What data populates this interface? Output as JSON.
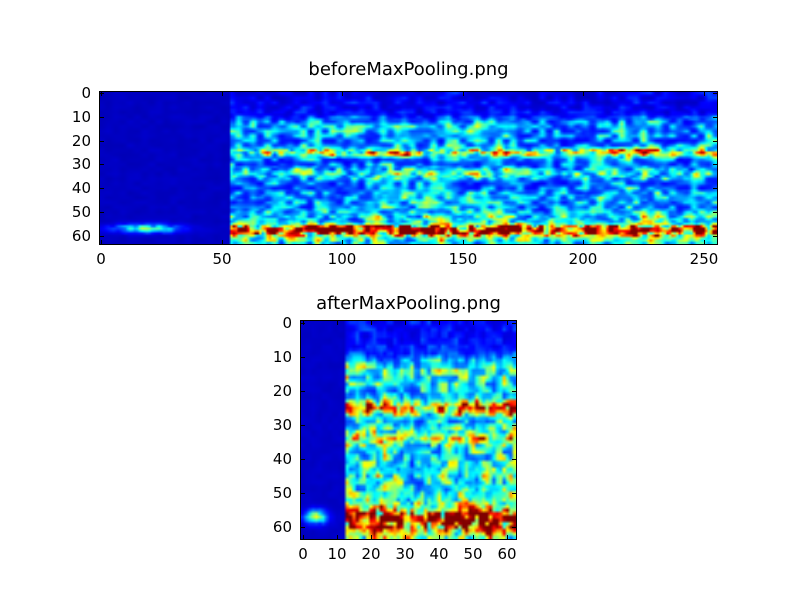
{
  "figure": {
    "background": "#ffffff",
    "frame_color": "#000000",
    "text_color": "#000000"
  },
  "chart_data": [
    {
      "type": "heatmap",
      "title": "beforeMaxPooling.png",
      "xlabel": "",
      "ylabel": "",
      "colormap": "jet",
      "x_ticks": [
        0,
        50,
        100,
        150,
        200,
        250
      ],
      "y_ticks": [
        0,
        10,
        20,
        30,
        40,
        50,
        60
      ],
      "x_range": [
        -0.5,
        255.5
      ],
      "y_range": [
        -0.5,
        63.5
      ],
      "y_axis_inverted": true,
      "grid": false,
      "legend": false,
      "description": "Spectrogram, 64 frequency rows x 256 time frames. Frames 0-54 are near-silent dark navy except a faint blue streak at row ~57 spanning frames ~6-32. Active frames 55-255 show noisy blue background (rows 0-8 quieter), bright blue horizontal bands near rows 25 and 33, faint bands near rows 44 and 52, and a strong yellow/orange/red hotspot band near row 57 over cyan, with moderate noise in rows 59-63.",
      "render": {
        "seed": 1337,
        "cols": 256,
        "rows": 64,
        "nsx": 3.0,
        "nsy": 2.0,
        "silence_end": 54,
        "silent_base": 0.055,
        "silent_noise": 0.02,
        "floor": 0.045,
        "base": 0.25,
        "quiet_top_rows": 9,
        "bands": [
          {
            "y": 13,
            "s": 4.0,
            "a": 0.06
          },
          {
            "y": 25,
            "s": 1.4,
            "a": 0.38
          },
          {
            "y": 33.5,
            "s": 1.7,
            "a": 0.24
          },
          {
            "y": 44,
            "s": 2.5,
            "a": 0.09
          },
          {
            "y": 52,
            "s": 2.2,
            "a": 0.16
          },
          {
            "y": 57.5,
            "s": 1.7,
            "a": 0.8
          },
          {
            "y": 61.5,
            "s": 2.2,
            "a": 0.2
          }
        ],
        "silent_blob": {
          "x": 19,
          "sx": 9.0,
          "y": 57,
          "sy": 1.3,
          "a": 0.4
        }
      }
    },
    {
      "type": "heatmap",
      "title": "afterMaxPooling.png",
      "xlabel": "",
      "ylabel": "",
      "colormap": "jet",
      "x_ticks": [
        0,
        10,
        20,
        30,
        40,
        50,
        60
      ],
      "y_ticks": [
        0,
        10,
        20,
        30,
        40,
        50,
        60
      ],
      "x_range": [
        -0.5,
        62.5
      ],
      "y_range": [
        -0.5,
        63.5
      ],
      "y_axis_inverted": true,
      "grid": false,
      "legend": false,
      "description": "Max-pooled spectrogram, 64 rows x 63 frames. Frames 0-12 near-silent dark navy with a small cyan-blue blob at row ~57, frames ~2-7. Active region is brighter blue noise than the before image, with bright cyan bands near rows 25 and 33, faint bands near 44 and 52, and an intense yellow/orange/red band near row 57 including dark-red spots.",
      "render": {
        "seed": 2024,
        "cols": 63,
        "rows": 64,
        "nsx": 1.6,
        "nsy": 1.8,
        "silence_end": 13,
        "silent_base": 0.06,
        "silent_noise": 0.02,
        "floor": 0.055,
        "base": 0.34,
        "quiet_top_rows": 9,
        "bands": [
          {
            "y": 13,
            "s": 4.0,
            "a": 0.09
          },
          {
            "y": 25,
            "s": 1.5,
            "a": 0.48
          },
          {
            "y": 33.5,
            "s": 1.8,
            "a": 0.32
          },
          {
            "y": 44,
            "s": 2.6,
            "a": 0.13
          },
          {
            "y": 52,
            "s": 2.3,
            "a": 0.22
          },
          {
            "y": 57.5,
            "s": 1.8,
            "a": 0.92
          },
          {
            "y": 61.5,
            "s": 2.3,
            "a": 0.26
          }
        ],
        "silent_blob": {
          "x": 4,
          "sx": 2.2,
          "y": 57,
          "sy": 1.4,
          "a": 0.45
        }
      }
    }
  ]
}
